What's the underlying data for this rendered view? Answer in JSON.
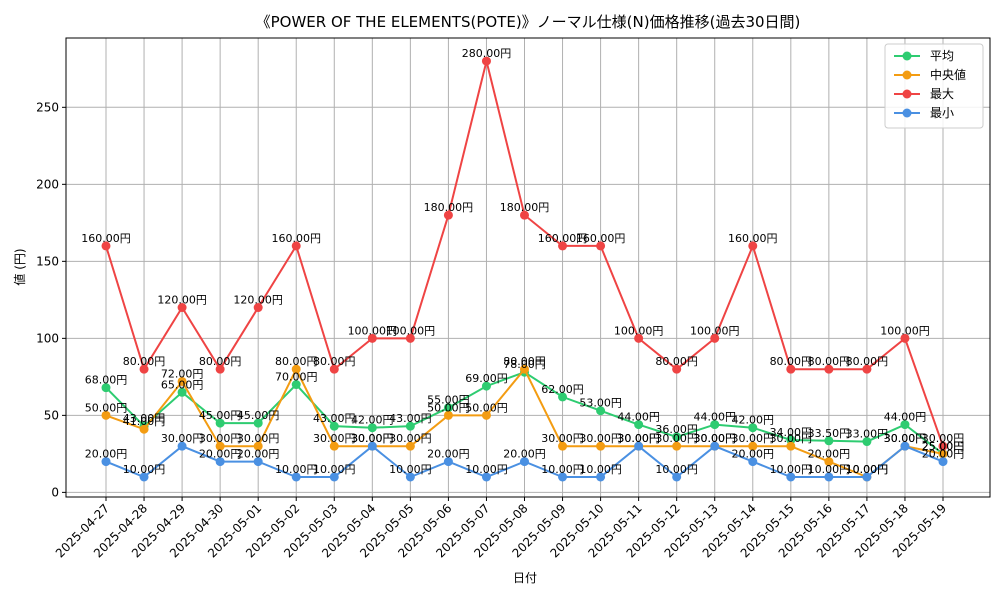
{
  "chart_data": {
    "type": "line",
    "title": "《POWER OF THE ELEMENTS(POTE)》ノーマル仕様(N)価格推移(過去30日間)",
    "xlabel": "日付",
    "ylabel": "値 (円)",
    "ylim": [
      -3,
      295
    ],
    "yticks": [
      0,
      50,
      100,
      150,
      200,
      250
    ],
    "grid": true,
    "legend_position": "top-right",
    "label_suffix": "円",
    "categories": [
      "2025-04-27",
      "2025-04-28",
      "2025-04-29",
      "2025-04-30",
      "2025-05-01",
      "2025-05-02",
      "2025-05-03",
      "2025-05-04",
      "2025-05-05",
      "2025-05-06",
      "2025-05-07",
      "2025-05-08",
      "2025-05-09",
      "2025-05-10",
      "2025-05-11",
      "2025-05-12",
      "2025-05-13",
      "2025-05-14",
      "2025-05-15",
      "2025-05-16",
      "2025-05-17",
      "2025-05-18",
      "2025-05-19"
    ],
    "series": [
      {
        "name": "平均",
        "color": "#2ecc71",
        "values": [
          68,
          43,
          65,
          45,
          45,
          70,
          43,
          42,
          43,
          55,
          69,
          78,
          62,
          53,
          44,
          36,
          44,
          42,
          34,
          33.5,
          33,
          44,
          25
        ]
      },
      {
        "name": "中央値",
        "color": "#f39c12",
        "values": [
          50,
          41,
          72,
          30,
          30,
          80,
          30,
          30,
          30,
          50,
          50,
          80,
          30,
          30,
          30,
          30,
          30,
          30,
          30,
          20,
          10,
          30,
          25
        ]
      },
      {
        "name": "最大",
        "color": "#ef4444",
        "values": [
          160,
          80,
          120,
          80,
          120,
          160,
          80,
          100,
          100,
          180,
          280,
          180,
          160,
          160,
          100,
          80,
          100,
          160,
          80,
          80,
          80,
          100,
          30
        ]
      },
      {
        "name": "最小",
        "color": "#4a90e2",
        "values": [
          20,
          10,
          30,
          20,
          20,
          10,
          10,
          30,
          10,
          20,
          10,
          20,
          10,
          10,
          30,
          10,
          30,
          20,
          10,
          10,
          10,
          30,
          20
        ]
      }
    ]
  }
}
